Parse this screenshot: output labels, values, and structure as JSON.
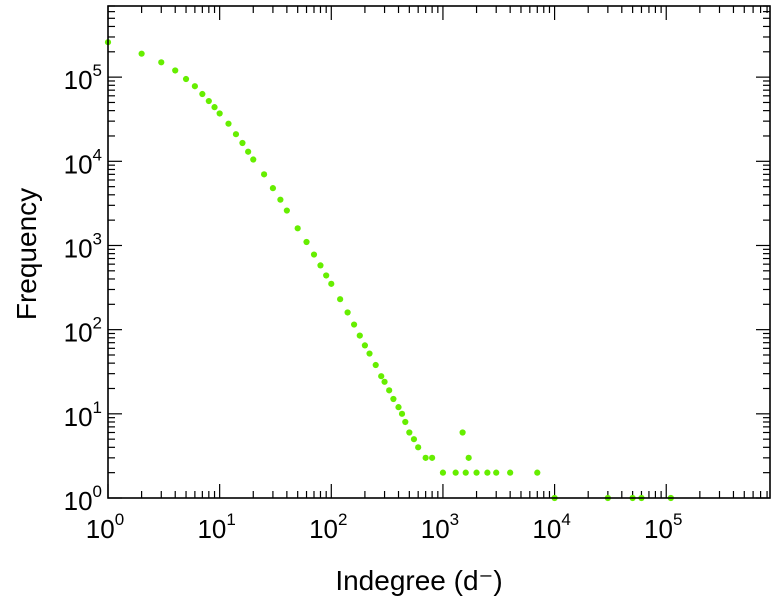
{
  "chart_data": {
    "type": "scatter",
    "title": "",
    "xlabel": "Indegree (d⁻)",
    "ylabel": "Frequency",
    "xscale": "log",
    "yscale": "log",
    "xlim": [
      1,
      850000
    ],
    "ylim": [
      1,
      700000
    ],
    "grid": false,
    "legend": "none",
    "marker_color": "#66ee00",
    "x_tick_labels": [
      {
        "base": "10",
        "exp": "0",
        "value": 1
      },
      {
        "base": "10",
        "exp": "1",
        "value": 10
      },
      {
        "base": "10",
        "exp": "2",
        "value": 100
      },
      {
        "base": "10",
        "exp": "3",
        "value": 1000
      },
      {
        "base": "10",
        "exp": "4",
        "value": 10000
      },
      {
        "base": "10",
        "exp": "5",
        "value": 100000
      }
    ],
    "y_tick_labels": [
      {
        "base": "10",
        "exp": "0",
        "value": 1
      },
      {
        "base": "10",
        "exp": "1",
        "value": 10
      },
      {
        "base": "10",
        "exp": "2",
        "value": 100
      },
      {
        "base": "10",
        "exp": "3",
        "value": 1000
      },
      {
        "base": "10",
        "exp": "4",
        "value": 10000
      },
      {
        "base": "10",
        "exp": "5",
        "value": 100000
      }
    ],
    "series": [
      {
        "points": [
          [
            1,
            260000
          ],
          [
            2,
            190000
          ],
          [
            3,
            150000
          ],
          [
            4,
            120000
          ],
          [
            5,
            95000
          ],
          [
            6,
            78000
          ],
          [
            7,
            63000
          ],
          [
            8,
            52000
          ],
          [
            9,
            44000
          ],
          [
            10,
            37000
          ],
          [
            12,
            28000
          ],
          [
            14,
            21000
          ],
          [
            16,
            16500
          ],
          [
            18,
            13000
          ],
          [
            20,
            10500
          ],
          [
            25,
            7000
          ],
          [
            30,
            4800
          ],
          [
            35,
            3500
          ],
          [
            40,
            2600
          ],
          [
            50,
            1600
          ],
          [
            60,
            1100
          ],
          [
            70,
            780
          ],
          [
            80,
            580
          ],
          [
            90,
            440
          ],
          [
            100,
            350
          ],
          [
            120,
            230
          ],
          [
            140,
            160
          ],
          [
            160,
            115
          ],
          [
            180,
            85
          ],
          [
            200,
            65
          ],
          [
            220,
            52
          ],
          [
            250,
            38
          ],
          [
            280,
            28
          ],
          [
            300,
            24
          ],
          [
            330,
            19
          ],
          [
            360,
            15
          ],
          [
            400,
            12
          ],
          [
            430,
            10
          ],
          [
            460,
            8
          ],
          [
            500,
            6
          ],
          [
            550,
            5
          ],
          [
            600,
            4
          ],
          [
            700,
            3
          ],
          [
            800,
            3
          ],
          [
            1000,
            2
          ],
          [
            1300,
            2
          ],
          [
            1600,
            2
          ],
          [
            1500,
            6
          ],
          [
            1700,
            3
          ],
          [
            2000,
            2
          ],
          [
            2500,
            2
          ],
          [
            3000,
            2
          ],
          [
            4000,
            2
          ],
          [
            7000,
            2
          ],
          [
            10000,
            1
          ],
          [
            30000,
            1
          ],
          [
            50000,
            1
          ],
          [
            60000,
            1
          ],
          [
            110000,
            1
          ]
        ]
      }
    ]
  }
}
